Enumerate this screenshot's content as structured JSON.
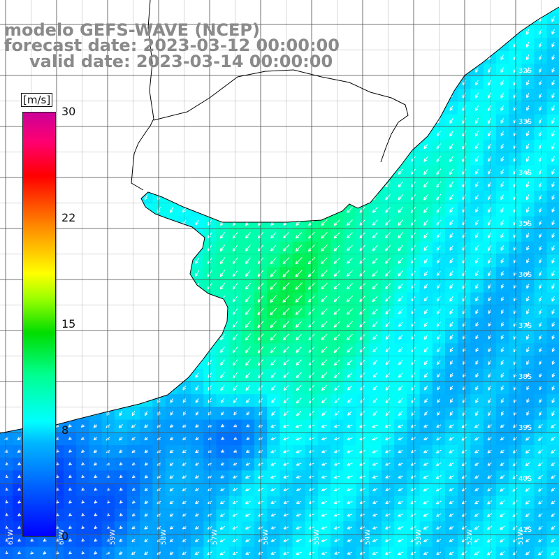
{
  "title": {
    "line1": "modelo GEFS-WAVE (NCEP)",
    "line2": "forecast date: 2023-03-12 00:00:00",
    "line3": "valid date: 2023-03-14 00:00:00"
  },
  "colorbar": {
    "unit": "[m/s]",
    "ticks": [
      "30",
      "22",
      "15",
      "8",
      "0"
    ],
    "range": [
      0,
      30
    ],
    "colors": [
      "#0000ff",
      "#00b7ff",
      "#00ffff",
      "#00ff90",
      "#00dd00",
      "#9aff00",
      "#ffff00",
      "#ff8000",
      "#ff0000",
      "#ff0070",
      "#cc0099"
    ]
  },
  "lat_labels": [
    "32S",
    "33S",
    "34S",
    "35S",
    "36S",
    "37S",
    "38S",
    "39S",
    "40S",
    "41S"
  ],
  "lon_labels": [
    "61W",
    "60W",
    "59W",
    "58W",
    "57W",
    "56W",
    "55W",
    "54W",
    "53W",
    "52W",
    "51W"
  ],
  "map": {
    "land_color": "#ffffff",
    "grid_color": "#555555",
    "coast_color": "#000000",
    "arrow_color": "#ffffff",
    "wind_direction": "from north-east towards south-west",
    "speed_range_ms": [
      1,
      14
    ]
  }
}
